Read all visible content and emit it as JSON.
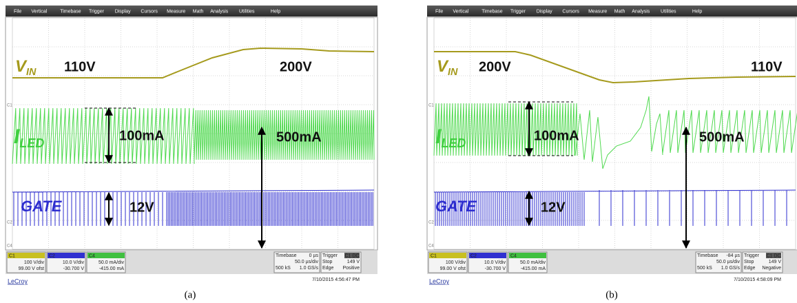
{
  "menu": [
    "File",
    "Vertical",
    "Timebase",
    "Trigger",
    "Display",
    "Cursors",
    "Measure",
    "Math",
    "Analysis",
    "Utilities",
    "Help"
  ],
  "panels": [
    {
      "vin": {
        "main": "V",
        "sub": "IN"
      },
      "vin_left": "110V",
      "vin_right": "200V",
      "iled": {
        "main": "I",
        "sub": "LED"
      },
      "iled_small": "100mA",
      "iled_large": "500mA",
      "gate": "GATE",
      "gate_amp": "12V",
      "side_markers": [
        "C1",
        "C2",
        "C4"
      ],
      "channel_boxes": [
        {
          "badge": "C1",
          "scale": "100 V/div",
          "offset": "99.00 V ofst"
        },
        {
          "badge": "C2",
          "scale": "10.0 V/div",
          "offset": "-30.700 V"
        },
        {
          "badge": "C4",
          "scale": "50.0 mA/div",
          "offset": "-415.00 mA"
        }
      ],
      "timebase": {
        "title": "Timebase",
        "delay": "0 µs",
        "rate": "50.0 µs/div",
        "samples": "500 kS",
        "sample_rate": "1.0 GS/s"
      },
      "trigger": {
        "title": "Trigger",
        "source": "C1 DC",
        "mode": "Stop",
        "level": "149 V",
        "type": "Edge",
        "slope": "Positive"
      },
      "brand": "LeCroy",
      "timestamp": "7/10/2015 4:56:47 PM",
      "caption": "(a)"
    },
    {
      "vin": {
        "main": "V",
        "sub": "IN"
      },
      "vin_left": "200V",
      "vin_right": "110V",
      "iled": {
        "main": "I",
        "sub": "LED"
      },
      "iled_small": "100mA",
      "iled_large": "500mA",
      "gate": "GATE",
      "gate_amp": "12V",
      "side_markers": [
        "C1",
        "C2",
        "C4"
      ],
      "channel_boxes": [
        {
          "badge": "C1",
          "scale": "100 V/div",
          "offset": "99.00 V ofst"
        },
        {
          "badge": "C2",
          "scale": "10.0 V/div",
          "offset": "-30.700 V"
        },
        {
          "badge": "C4",
          "scale": "50.0 mA/div",
          "offset": "-415.00 mA"
        }
      ],
      "timebase": {
        "title": "Timebase",
        "delay": "-84 µs",
        "rate": "50.0 µs/div",
        "samples": "500 kS",
        "sample_rate": "1.0 GS/s"
      },
      "trigger": {
        "title": "Trigger",
        "source": "C1 DC",
        "mode": "Stop",
        "level": "149 V",
        "type": "Edge",
        "slope": "Negative"
      },
      "brand": "LeCroy",
      "timestamp": "7/10/2015 4:58:09 PM",
      "caption": "(b)"
    }
  ]
}
